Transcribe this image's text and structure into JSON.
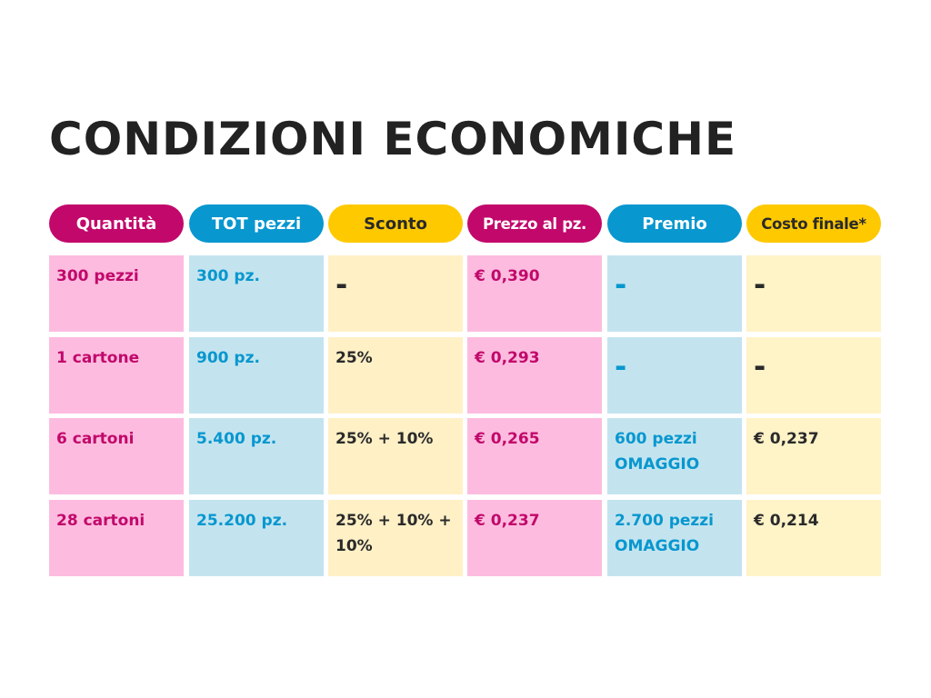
{
  "title": "CONDIZIONI ECONOMICHE",
  "headers": [
    "Quantità",
    "TOT  pezzi",
    "Sconto",
    "Prezzo al pz.",
    "Premio",
    "Costo finale*"
  ],
  "rows": [
    [
      "300 pezzi",
      "300 pz.",
      "-",
      "€ 0,390",
      "-",
      "-"
    ],
    [
      "1 cartone",
      "900 pz.",
      "25%",
      "€ 0,293",
      "-",
      "-"
    ],
    [
      "6 cartoni",
      "5.400 pz.",
      "25% + 10%",
      "€ 0,265",
      "600 pezzi OMAGGIO",
      "€ 0,237"
    ],
    [
      "28 cartoni",
      "25.200 pz.",
      "25% + 10% + 10%",
      "€ 0,237",
      "2.700 pezzi OMAGGIO",
      "€ 0,214"
    ]
  ],
  "colors": {
    "magenta": "#c2086b",
    "blue": "#0897cf",
    "yellow": "#ffc900",
    "pink_cell": "#fdbcdf",
    "blue_cell": "#c3e4ef",
    "yellow_cell": "#fff0c6",
    "title": "#222222"
  }
}
